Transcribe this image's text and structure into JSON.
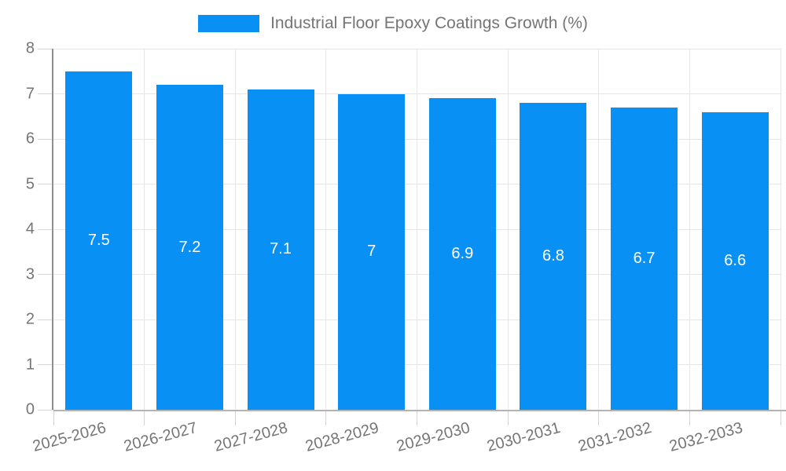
{
  "legend": {
    "label": "Industrial Floor Epoxy Coatings Growth (%)"
  },
  "chart_data": {
    "type": "bar",
    "title": "Industrial Floor Epoxy Coatings Growth (%)",
    "series_name": "Industrial Floor Epoxy Coatings Growth (%)",
    "categories": [
      "2025-2026",
      "2026-2027",
      "2027-2028",
      "2028-2029",
      "2029-2030",
      "2030-2031",
      "2031-2032",
      "2032-2033"
    ],
    "values": [
      7.5,
      7.2,
      7.1,
      7,
      6.9,
      6.8,
      6.7,
      6.6
    ],
    "value_labels": [
      "7.5",
      "7.2",
      "7.1",
      "7",
      "6.9",
      "6.8",
      "6.7",
      "6.6"
    ],
    "xlabel": "",
    "ylabel": "",
    "ylim": [
      0,
      8
    ],
    "ytick_step": 1,
    "yticks": [
      0,
      1,
      2,
      3,
      4,
      5,
      6,
      7,
      8
    ],
    "grid": true,
    "legend_position": "top-center",
    "x_label_rotation_deg": -15
  },
  "colors": {
    "bar": "#0990f5",
    "bar_value_text": "#ffffff",
    "axis_text": "#757575",
    "gridline": "#e6e6e6",
    "tick": "#d4d4d4",
    "y_axis_line": "#8f8f8f",
    "x_axis_line": "#b3b3b3",
    "background": "#ffffff"
  }
}
